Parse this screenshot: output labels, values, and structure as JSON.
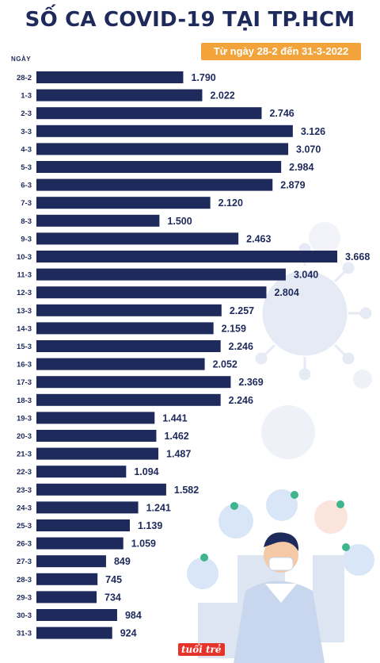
{
  "header": {
    "title": "SỐ CA COVID-19 TẠI TP.HCM",
    "date_range": "Từ ngày 28-2 đến 31-3-2022"
  },
  "footer": {
    "logo_text": "tuổi trẻ"
  },
  "colors": {
    "bar": "#1d2a5b",
    "badge": "#f2a33a",
    "decor": "#e4e8f4"
  },
  "chart_data": {
    "type": "bar",
    "orientation": "horizontal",
    "title": "SỐ CA COVID-19 TẠI TP.HCM",
    "subtitle": "Từ ngày 28-2 đến 31-3-2022",
    "ylabel": "NGÀY",
    "xlabel": "",
    "xlim": [
      0,
      3668
    ],
    "grid": false,
    "categories": [
      "28-2",
      "1-3",
      "2-3",
      "3-3",
      "4-3",
      "5-3",
      "6-3",
      "7-3",
      "8-3",
      "9-3",
      "10-3",
      "11-3",
      "12-3",
      "13-3",
      "14-3",
      "15-3",
      "16-3",
      "17-3",
      "18-3",
      "19-3",
      "20-3",
      "21-3",
      "22-3",
      "23-3",
      "24-3",
      "25-3",
      "26-3",
      "27-3",
      "28-3",
      "29-3",
      "30-3",
      "31-3"
    ],
    "values": [
      1790,
      2022,
      2746,
      3126,
      3070,
      2984,
      2879,
      2120,
      1500,
      2463,
      3668,
      3040,
      2804,
      2257,
      2159,
      2246,
      2052,
      2369,
      2246,
      1441,
      1462,
      1487,
      1094,
      1582,
      1241,
      1139,
      1059,
      849,
      745,
      734,
      984,
      924
    ],
    "value_labels": [
      "1.790",
      "2.022",
      "2.746",
      "3.126",
      "3.070",
      "2.984",
      "2.879",
      "2.120",
      "1.500",
      "2.463",
      "3.668",
      "3.040",
      "2.804",
      "2.257",
      "2.159",
      "2.246",
      "2.052",
      "2.369",
      "2.246",
      "1.441",
      "1.462",
      "1.487",
      "1.094",
      "1.582",
      "1.241",
      "1.139",
      "1.059",
      "849",
      "745",
      "734",
      "984",
      "924"
    ]
  }
}
